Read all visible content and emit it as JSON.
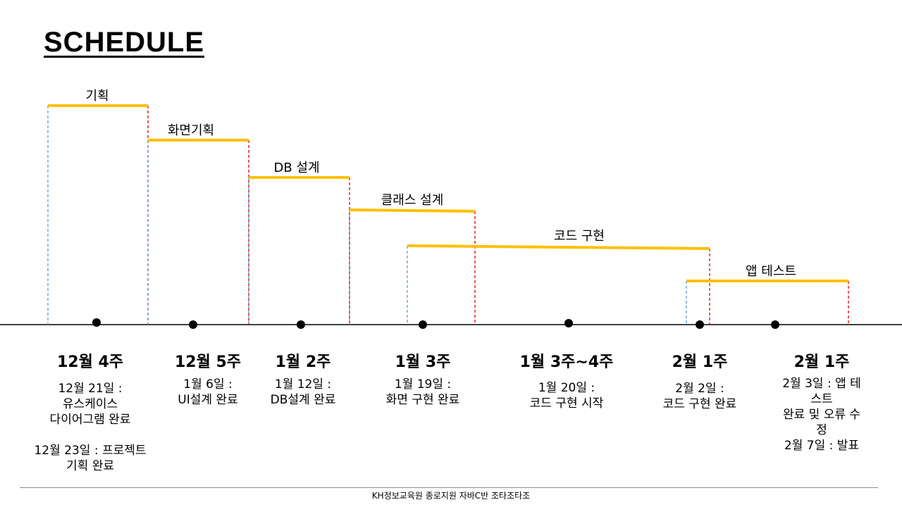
{
  "title": "SCHEDULE",
  "colors": {
    "bar": "#ffc000",
    "start_line": "#5b9bd5",
    "end_line": "#e00000",
    "axis": "#000000"
  },
  "phases": [
    {
      "label": "기획"
    },
    {
      "label": "화면기획"
    },
    {
      "label": "DB 설계"
    },
    {
      "label": "클래스 설계"
    },
    {
      "label": "코드 구현"
    },
    {
      "label": "앱 테스트"
    }
  ],
  "weeks": [
    {
      "label": "12월 4주",
      "desc": "12월 21일 :\n유스케이스\n다이어그램 완료\n\n12월 23일 : 프로젝트\n기획 완료"
    },
    {
      "label": "12월 5주",
      "desc": "1월 6일 :\nUI설계 완료"
    },
    {
      "label": "1월 2주",
      "desc": "1월 12일 :\nDB설계 완료"
    },
    {
      "label": "1월 3주",
      "desc": "1월 19일 :\n화면 구현 완료"
    },
    {
      "label": "1월 3주~4주",
      "desc": "1월 20일 :\n코드 구현 시작"
    },
    {
      "label": "2월 1주",
      "desc": "2월 2일 :\n코드 구현 완료"
    },
    {
      "label": "2월 1주",
      "desc": "2월 3일 : 앱 테스트\n완료 및 오류 수정\n2월 7일 : 발표"
    }
  ],
  "footer": "KH정보교육원 종로지원 자바C반 조타조타조"
}
